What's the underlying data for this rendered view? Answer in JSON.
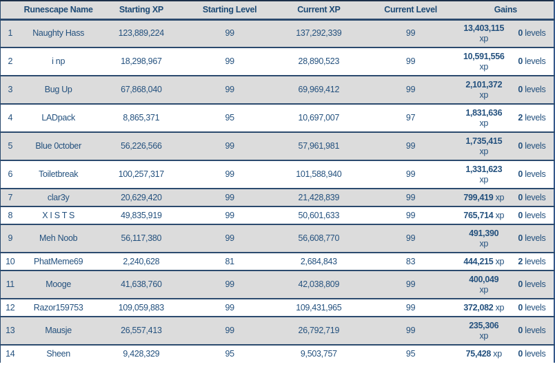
{
  "colors": {
    "row_stripe": "#dcdcdc",
    "row_white": "#ffffff",
    "border_navy": "#2b4a6e",
    "text_blue": "#24517e"
  },
  "table": {
    "headers": {
      "rank": "",
      "name": "Runescape Name",
      "starting_xp": "Starting XP",
      "starting_level": "Starting Level",
      "current_xp": "Current XP",
      "current_level": "Current Level",
      "gains": "Gains"
    },
    "units": {
      "xp": "xp",
      "levels": "levels"
    },
    "rows": [
      {
        "rank": "1",
        "name": "Naughty Hass",
        "starting_xp": "123,889,224",
        "starting_level": "99",
        "current_xp": "137,292,339",
        "current_level": "99",
        "gains_xp": "13,403,115",
        "gains_xp_wrap": true,
        "gains_levels": "0"
      },
      {
        "rank": "2",
        "name": "i np",
        "starting_xp": "18,298,967",
        "starting_level": "99",
        "current_xp": "28,890,523",
        "current_level": "99",
        "gains_xp": "10,591,556",
        "gains_xp_wrap": true,
        "gains_levels": "0"
      },
      {
        "rank": "3",
        "name": "Bug Up",
        "starting_xp": "67,868,040",
        "starting_level": "99",
        "current_xp": "69,969,412",
        "current_level": "99",
        "gains_xp": "2,101,372",
        "gains_xp_wrap": true,
        "gains_levels": "0"
      },
      {
        "rank": "4",
        "name": "LADpack",
        "starting_xp": "8,865,371",
        "starting_level": "95",
        "current_xp": "10,697,007",
        "current_level": "97",
        "gains_xp": "1,831,636",
        "gains_xp_wrap": true,
        "gains_levels": "2"
      },
      {
        "rank": "5",
        "name": "Blue 0ctober",
        "starting_xp": "56,226,566",
        "starting_level": "99",
        "current_xp": "57,961,981",
        "current_level": "99",
        "gains_xp": "1,735,415",
        "gains_xp_wrap": true,
        "gains_levels": "0"
      },
      {
        "rank": "6",
        "name": "Toiletbreak",
        "starting_xp": "100,257,317",
        "starting_level": "99",
        "current_xp": "101,588,940",
        "current_level": "99",
        "gains_xp": "1,331,623",
        "gains_xp_wrap": true,
        "gains_levels": "0"
      },
      {
        "rank": "7",
        "name": "clar3y",
        "starting_xp": "20,629,420",
        "starting_level": "99",
        "current_xp": "21,428,839",
        "current_level": "99",
        "gains_xp": "799,419",
        "gains_xp_wrap": false,
        "gains_levels": "0"
      },
      {
        "rank": "8",
        "name": "X I S T S",
        "starting_xp": "49,835,919",
        "starting_level": "99",
        "current_xp": "50,601,633",
        "current_level": "99",
        "gains_xp": "765,714",
        "gains_xp_wrap": false,
        "gains_levels": "0"
      },
      {
        "rank": "9",
        "name": "Meh Noob",
        "starting_xp": "56,117,380",
        "starting_level": "99",
        "current_xp": "56,608,770",
        "current_level": "99",
        "gains_xp": "491,390",
        "gains_xp_wrap": true,
        "gains_levels": "0"
      },
      {
        "rank": "10",
        "name": "PhatMeme69",
        "starting_xp": "2,240,628",
        "starting_level": "81",
        "current_xp": "2,684,843",
        "current_level": "83",
        "gains_xp": "444,215",
        "gains_xp_wrap": false,
        "gains_levels": "2"
      },
      {
        "rank": "11",
        "name": "Mooge",
        "starting_xp": "41,638,760",
        "starting_level": "99",
        "current_xp": "42,038,809",
        "current_level": "99",
        "gains_xp": "400,049",
        "gains_xp_wrap": true,
        "gains_levels": "0"
      },
      {
        "rank": "12",
        "name": "Razor159753",
        "starting_xp": "109,059,883",
        "starting_level": "99",
        "current_xp": "109,431,965",
        "current_level": "99",
        "gains_xp": "372,082",
        "gains_xp_wrap": false,
        "gains_levels": "0"
      },
      {
        "rank": "13",
        "name": "Mausje",
        "starting_xp": "26,557,413",
        "starting_level": "99",
        "current_xp": "26,792,719",
        "current_level": "99",
        "gains_xp": "235,306",
        "gains_xp_wrap": true,
        "gains_levels": "0"
      },
      {
        "rank": "14",
        "name": "Sheen",
        "starting_xp": "9,428,329",
        "starting_level": "95",
        "current_xp": "9,503,757",
        "current_level": "95",
        "gains_xp": "75,428",
        "gains_xp_wrap": false,
        "gains_levels": "0"
      }
    ]
  }
}
